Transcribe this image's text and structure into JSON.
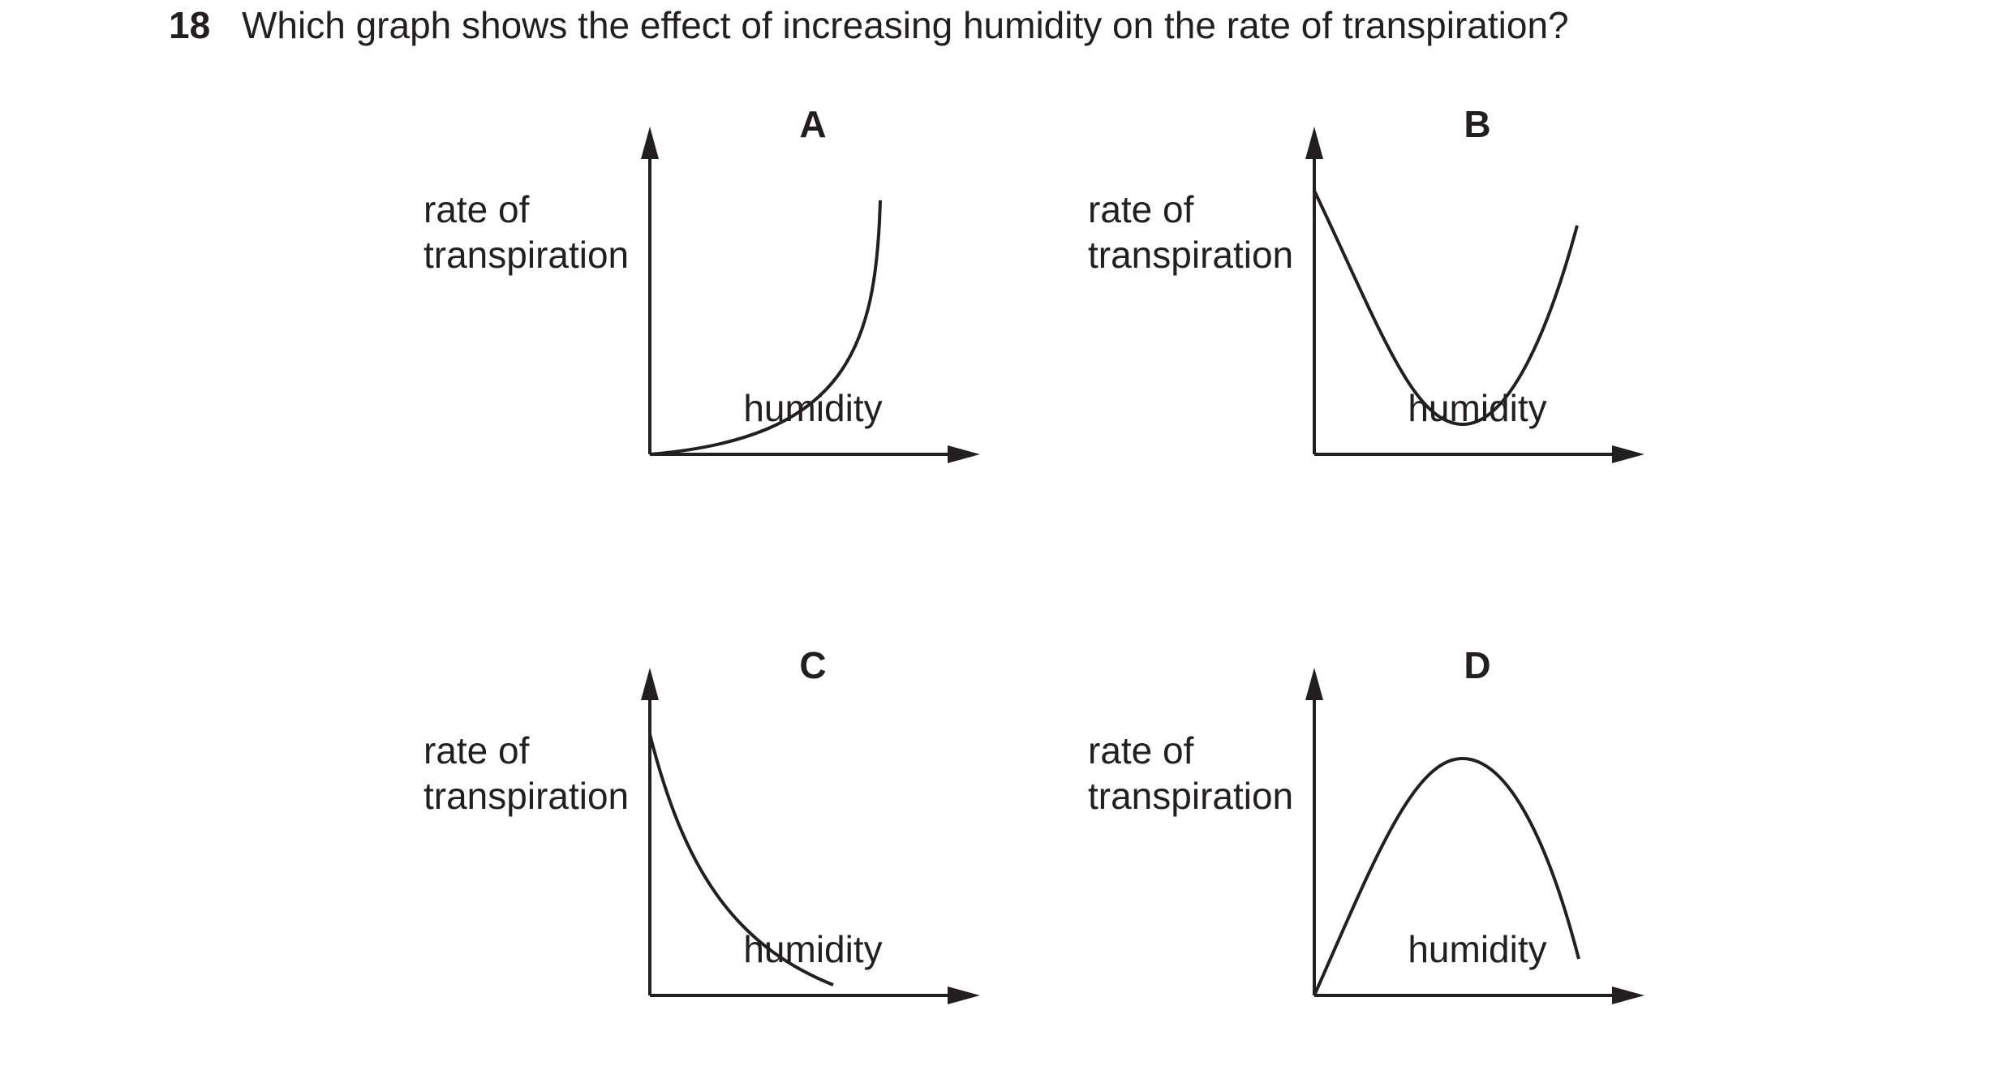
{
  "question": {
    "number": "18",
    "text": "Which graph shows the effect of increasing humidity on the rate of transpiration?"
  },
  "graphs": [
    {
      "letter": "A",
      "ylabel_line1": "rate of",
      "ylabel_line2": "transpiration",
      "xlabel": "humidity",
      "curve": "exponential-increase"
    },
    {
      "letter": "B",
      "ylabel_line1": "rate of",
      "ylabel_line2": "transpiration",
      "xlabel": "humidity",
      "curve": "u-shaped"
    },
    {
      "letter": "C",
      "ylabel_line1": "rate of",
      "ylabel_line2": "transpiration",
      "xlabel": "humidity",
      "curve": "exponential-decrease"
    },
    {
      "letter": "D",
      "ylabel_line1": "rate of",
      "ylabel_line2": "transpiration",
      "xlabel": "humidity",
      "curve": "inverted-u"
    }
  ],
  "colors": {
    "ink": "#231f20",
    "background": "#ffffff"
  }
}
